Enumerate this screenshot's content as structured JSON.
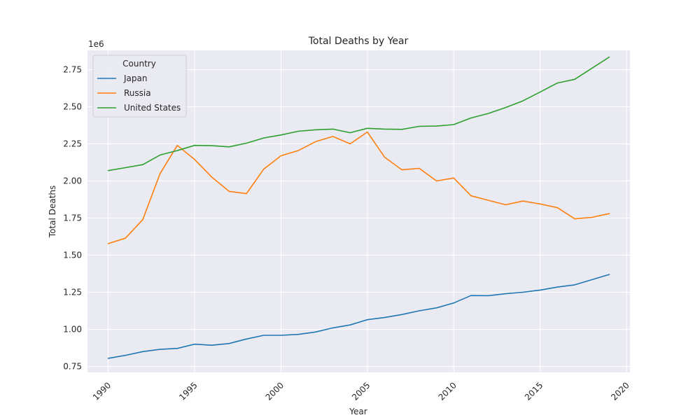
{
  "chart_data": {
    "type": "line",
    "title": "Total Deaths by Year",
    "xlabel": "Year",
    "ylabel": "Total Deaths",
    "y_scale_label": "1e6",
    "xlim": [
      1988.8,
      2020.2
    ],
    "ylim": [
      710000,
      2880000
    ],
    "x_ticks": [
      1990,
      1995,
      2000,
      2005,
      2010,
      2015,
      2020
    ],
    "x_tick_labels": [
      "1990",
      "1995",
      "2000",
      "2005",
      "2010",
      "2015",
      "2020"
    ],
    "y_ticks": [
      750000,
      1000000,
      1250000,
      1500000,
      1750000,
      2000000,
      2250000,
      2500000,
      2750000
    ],
    "y_tick_labels": [
      "0.75",
      "1.00",
      "1.25",
      "1.50",
      "1.75",
      "2.00",
      "2.25",
      "2.50",
      "2.75"
    ],
    "grid": true,
    "legend": {
      "title": "Country",
      "position": "top-left"
    },
    "x": [
      1990,
      1991,
      1992,
      1993,
      1994,
      1995,
      1996,
      1997,
      1998,
      1999,
      2000,
      2001,
      2002,
      2003,
      2004,
      2005,
      2006,
      2007,
      2008,
      2009,
      2010,
      2011,
      2012,
      2013,
      2014,
      2015,
      2016,
      2017,
      2018,
      2019
    ],
    "series": [
      {
        "name": "Japan",
        "color": "#1f77b4",
        "values": [
          805000,
          825000,
          850000,
          865000,
          872000,
          900000,
          893000,
          905000,
          935000,
          960000,
          960000,
          966000,
          982000,
          1010000,
          1030000,
          1065000,
          1080000,
          1100000,
          1125000,
          1145000,
          1178000,
          1228000,
          1227000,
          1240000,
          1250000,
          1265000,
          1285000,
          1300000,
          1335000,
          1370000
        ]
      },
      {
        "name": "Russia",
        "color": "#ff7f0e",
        "values": [
          1578000,
          1615000,
          1740000,
          2050000,
          2240000,
          2145000,
          2025000,
          1930000,
          1915000,
          2080000,
          2170000,
          2205000,
          2265000,
          2300000,
          2250000,
          2330000,
          2160000,
          2075000,
          2085000,
          2000000,
          2020000,
          1900000,
          1870000,
          1840000,
          1865000,
          1845000,
          1820000,
          1745000,
          1755000,
          1780000
        ]
      },
      {
        "name": "United States",
        "color": "#2ca02c",
        "values": [
          2070000,
          2090000,
          2110000,
          2175000,
          2205000,
          2240000,
          2238000,
          2230000,
          2255000,
          2290000,
          2310000,
          2335000,
          2345000,
          2350000,
          2325000,
          2355000,
          2350000,
          2348000,
          2368000,
          2370000,
          2380000,
          2425000,
          2455000,
          2495000,
          2540000,
          2600000,
          2660000,
          2685000,
          2760000,
          2835000
        ]
      }
    ]
  }
}
